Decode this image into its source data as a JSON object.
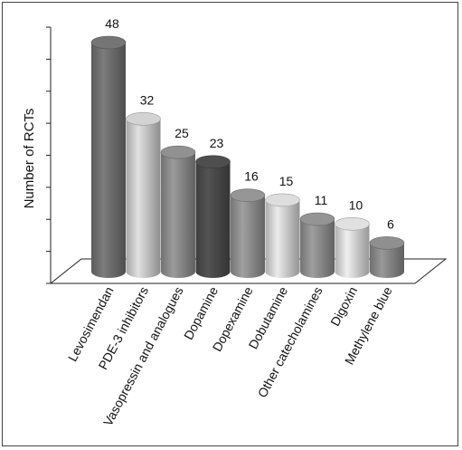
{
  "chart_data": {
    "type": "bar",
    "style": "3d-cylinder",
    "ylabel": "Number of RCTs",
    "xlabel": "",
    "ylim": [
      0,
      56
    ],
    "grid": false,
    "categories": [
      "Levosimendan",
      "PDE-3 inhibitors",
      "Vasopressin and analogues",
      "Dopamine",
      "Dopexamine",
      "Dobutamine",
      "Other catecholamines",
      "Digoxin",
      "Methylene blue"
    ],
    "values": [
      48,
      32,
      25,
      23,
      16,
      15,
      11,
      10,
      6
    ],
    "colors": [
      "#6f6f6f",
      "#c9c9c9",
      "#8a8a8a",
      "#4a4a4a",
      "#8f8f8f",
      "#d2d2d2",
      "#8d8d8d",
      "#d6d6d6",
      "#888888"
    ]
  }
}
